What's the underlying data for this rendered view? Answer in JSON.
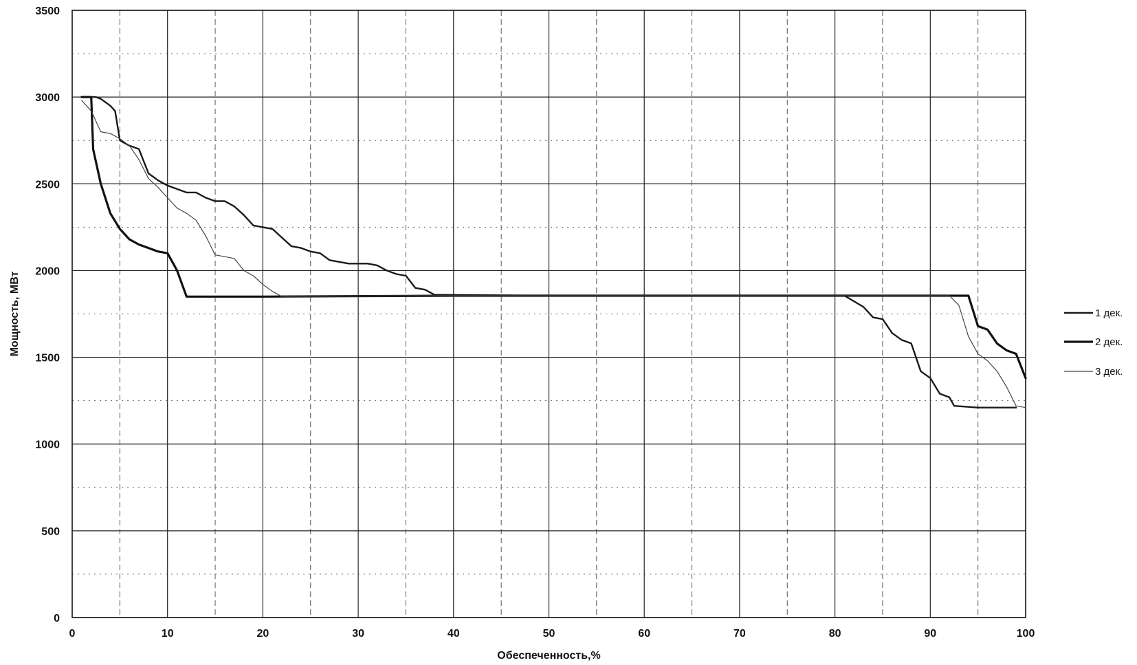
{
  "chart_data": {
    "type": "line",
    "title": "",
    "xlabel": "Обеспеченность,%",
    "ylabel": "Мощность,  МВт",
    "xlim": [
      0,
      100
    ],
    "ylim": [
      0,
      3500
    ],
    "x_ticks": [
      0,
      10,
      20,
      30,
      40,
      50,
      60,
      70,
      80,
      90,
      100
    ],
    "y_ticks": [
      0,
      500,
      1000,
      1500,
      2000,
      2500,
      3000,
      3500
    ],
    "grid": true,
    "legend_position": "right",
    "series": [
      {
        "name": "1 дек.",
        "color": "#1a1a1a",
        "line": "medium",
        "points": [
          [
            1,
            3000
          ],
          [
            2.5,
            3000
          ],
          [
            3,
            2990
          ],
          [
            4,
            2950
          ],
          [
            4.5,
            2920
          ],
          [
            5,
            2750
          ],
          [
            6,
            2720
          ],
          [
            7,
            2700
          ],
          [
            8,
            2560
          ],
          [
            9,
            2520
          ],
          [
            10,
            2490
          ],
          [
            11,
            2470
          ],
          [
            12,
            2450
          ],
          [
            13,
            2450
          ],
          [
            14,
            2420
          ],
          [
            15,
            2400
          ],
          [
            16,
            2400
          ],
          [
            17,
            2370
          ],
          [
            18,
            2320
          ],
          [
            19,
            2260
          ],
          [
            20,
            2250
          ],
          [
            21,
            2240
          ],
          [
            22,
            2190
          ],
          [
            23,
            2140
          ],
          [
            24,
            2130
          ],
          [
            25,
            2110
          ],
          [
            26,
            2100
          ],
          [
            27,
            2060
          ],
          [
            28,
            2050
          ],
          [
            29,
            2040
          ],
          [
            30,
            2040
          ],
          [
            31,
            2040
          ],
          [
            32,
            2030
          ],
          [
            33,
            2000
          ],
          [
            34,
            1980
          ],
          [
            35,
            1970
          ],
          [
            36,
            1900
          ],
          [
            37,
            1890
          ],
          [
            38,
            1860
          ],
          [
            50,
            1855
          ],
          [
            70,
            1855
          ],
          [
            81,
            1855
          ],
          [
            83,
            1790
          ],
          [
            84,
            1730
          ],
          [
            85,
            1720
          ],
          [
            86,
            1640
          ],
          [
            87,
            1600
          ],
          [
            88,
            1580
          ],
          [
            89,
            1420
          ],
          [
            90,
            1380
          ],
          [
            91,
            1290
          ],
          [
            92,
            1270
          ],
          [
            92.5,
            1220
          ],
          [
            95,
            1210
          ],
          [
            99,
            1210
          ]
        ]
      },
      {
        "name": "2 дек.",
        "color": "#111111",
        "line": "thick",
        "points": [
          [
            1,
            3000
          ],
          [
            2,
            3000
          ],
          [
            2.2,
            2700
          ],
          [
            3,
            2500
          ],
          [
            4,
            2330
          ],
          [
            5,
            2240
          ],
          [
            6,
            2180
          ],
          [
            7,
            2150
          ],
          [
            8,
            2130
          ],
          [
            9,
            2110
          ],
          [
            10,
            2100
          ],
          [
            11,
            2000
          ],
          [
            12,
            1850
          ],
          [
            20,
            1850
          ],
          [
            40,
            1855
          ],
          [
            60,
            1855
          ],
          [
            80,
            1855
          ],
          [
            94,
            1855
          ],
          [
            95,
            1680
          ],
          [
            96,
            1660
          ],
          [
            97,
            1580
          ],
          [
            98,
            1540
          ],
          [
            99,
            1520
          ],
          [
            100,
            1380
          ]
        ]
      },
      {
        "name": "3 дек.",
        "color": "#444444",
        "line": "thin",
        "points": [
          [
            1,
            2980
          ],
          [
            2,
            2920
          ],
          [
            3,
            2800
          ],
          [
            4,
            2790
          ],
          [
            5,
            2760
          ],
          [
            6,
            2720
          ],
          [
            7,
            2640
          ],
          [
            8,
            2530
          ],
          [
            9,
            2480
          ],
          [
            10,
            2420
          ],
          [
            11,
            2360
          ],
          [
            12,
            2330
          ],
          [
            13,
            2290
          ],
          [
            14,
            2200
          ],
          [
            15,
            2090
          ],
          [
            16,
            2080
          ],
          [
            17,
            2070
          ],
          [
            18,
            2000
          ],
          [
            19,
            1970
          ],
          [
            20,
            1920
          ],
          [
            21,
            1880
          ],
          [
            22,
            1850
          ],
          [
            35,
            1855
          ],
          [
            60,
            1855
          ],
          [
            82,
            1855
          ],
          [
            92,
            1855
          ],
          [
            93,
            1800
          ],
          [
            94,
            1620
          ],
          [
            95,
            1520
          ],
          [
            96,
            1480
          ],
          [
            97,
            1420
          ],
          [
            98,
            1330
          ],
          [
            99,
            1220
          ],
          [
            100,
            1210
          ]
        ]
      }
    ]
  }
}
